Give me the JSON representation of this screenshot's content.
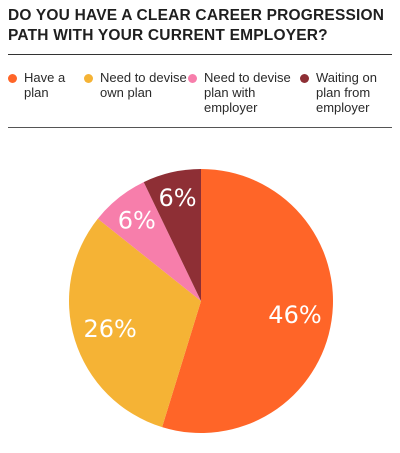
{
  "chart_data": {
    "type": "pie",
    "title": "DO YOU HAVE A CLEAR CAREER PROGRESSION PATH WITH YOUR CURRENT EMPLOYER?",
    "categories": [
      "Have a plan",
      "Need to devise own plan",
      "Need to devise plan with employer",
      "Waiting on plan from employer"
    ],
    "legend_labels": [
      "Have a\nplan",
      "Need to devise\nown plan",
      "Need to devise\nplan with\nemployer",
      "Waiting on\nplan from\nemployer"
    ],
    "values": [
      46,
      26,
      6,
      6
    ],
    "data_labels": [
      "46%",
      "26%",
      "6%",
      "6%"
    ],
    "colors": [
      "#ff6528",
      "#f5b335",
      "#f77eab",
      "#8e2f35"
    ],
    "legend_placement": "top"
  }
}
